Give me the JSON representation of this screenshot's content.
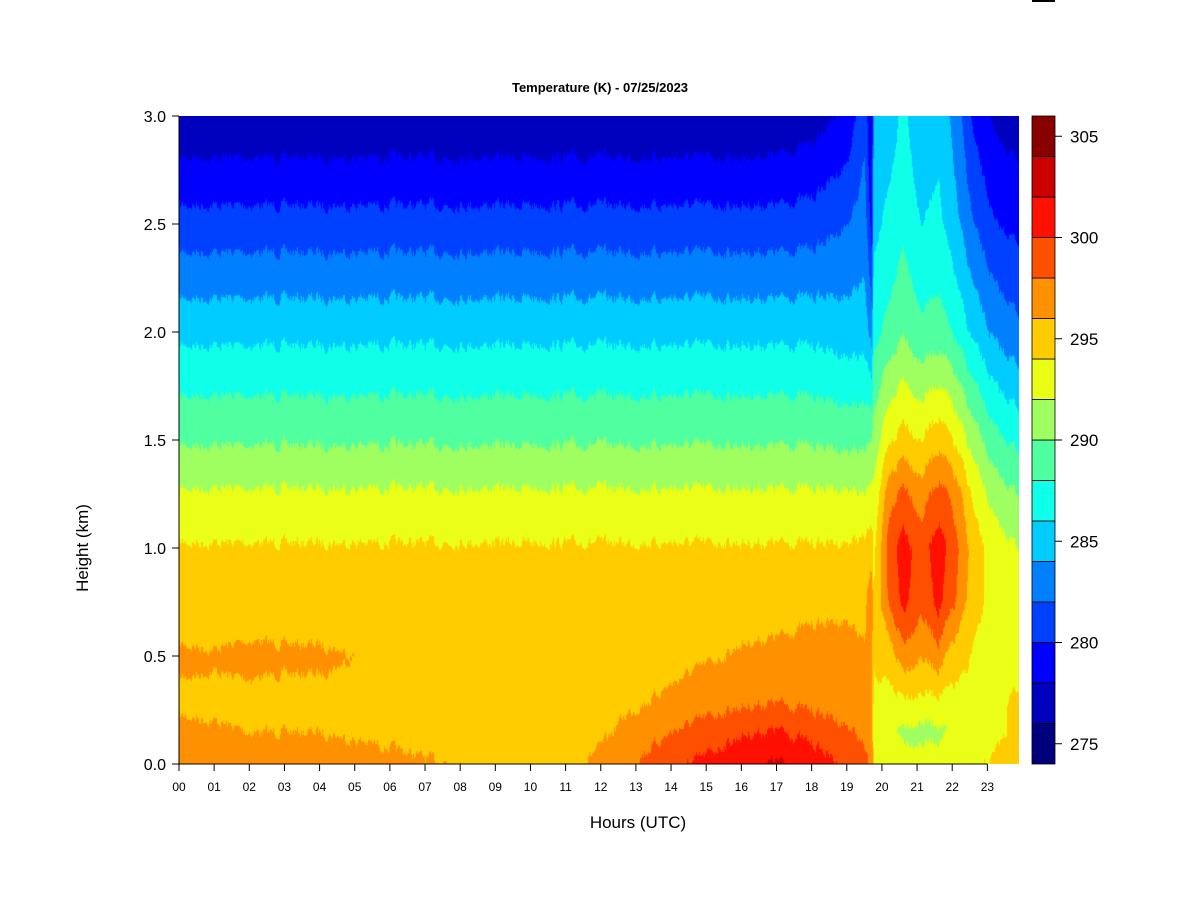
{
  "chart_data": {
    "type": "heatmap",
    "title": "Temperature (K) - 07/25/2023",
    "xlabel": "Hours (UTC)",
    "ylabel": "Height (km)",
    "xlim": [
      0,
      23.9
    ],
    "ylim": [
      0,
      3.0
    ],
    "x_tick_labels": [
      "00",
      "01",
      "02",
      "03",
      "04",
      "05",
      "06",
      "07",
      "08",
      "09",
      "10",
      "11",
      "12",
      "13",
      "14",
      "15",
      "16",
      "17",
      "18",
      "19",
      "20",
      "21",
      "22",
      "23"
    ],
    "y_tick_labels": [
      "0.0",
      "0.5",
      "1.0",
      "1.5",
      "2.0",
      "2.5",
      "3.0"
    ],
    "colorbar": {
      "levels_min": 274,
      "levels_max": 306,
      "level_step": 2,
      "tick_labels": [
        "275",
        "280",
        "285",
        "290",
        "295",
        "300",
        "305"
      ],
      "colors": [
        "#00007F",
        "#0000BF",
        "#0000FF",
        "#0040FF",
        "#0080FF",
        "#00CCFF",
        "#10FFE8",
        "#50FF9F",
        "#A0FF60",
        "#EAFF15",
        "#FFCC00",
        "#FF9000",
        "#FF5000",
        "#FF1000",
        "#CC0000",
        "#880000"
      ]
    },
    "grid_hours": [
      0,
      1,
      2,
      3,
      4,
      5,
      6,
      7,
      8,
      9,
      10,
      11,
      12,
      13,
      14,
      15,
      16,
      17,
      18,
      19,
      19.5,
      19.7,
      19.75,
      20.2,
      20.6,
      21.1,
      21.6,
      22.1,
      22.6,
      23.2,
      23.9
    ],
    "grid_heights_km": [
      0,
      0.15,
      0.3,
      0.5,
      0.75,
      1.0,
      1.25,
      1.5,
      2.0,
      2.5,
      3.0
    ],
    "temperature_K": [
      [
        297,
        297,
        297,
        296.8,
        296.8,
        296.6,
        296.3,
        296.1,
        296,
        295.5,
        295.3,
        295.5,
        296.5,
        298.2,
        299.6,
        300.5,
        301.6,
        302.3,
        301.3,
        299.5,
        298.5,
        297.5,
        294,
        293.5,
        293.5,
        293.5,
        293.5,
        293.5,
        293.8,
        294.2,
        296
      ],
      [
        296.2,
        296.1,
        296,
        296,
        296,
        295.8,
        295.7,
        295.6,
        295.5,
        295.4,
        295.3,
        295.3,
        295.6,
        296.8,
        298,
        298.8,
        299.8,
        300.2,
        299.3,
        298.3,
        297.5,
        297,
        293.5,
        292.5,
        291.5,
        291.2,
        291.5,
        292.5,
        293,
        293.5,
        294.5
      ],
      [
        295.8,
        295.8,
        295.7,
        295.7,
        295.7,
        295.6,
        295.5,
        295.5,
        295.4,
        295.4,
        295.3,
        295.3,
        295.4,
        295.7,
        296.4,
        297,
        297.5,
        297.8,
        297.3,
        296.8,
        296.5,
        296.5,
        293.8,
        293.5,
        293.6,
        293.6,
        293.5,
        293.5,
        293.6,
        293.8,
        294.2
      ],
      [
        296.2,
        296.1,
        296.3,
        296.2,
        296.2,
        296,
        295.8,
        295.5,
        295.6,
        295.8,
        295.5,
        295.3,
        295.2,
        295.2,
        295.3,
        295.8,
        296.2,
        296.4,
        296.6,
        296.4,
        296.2,
        296.8,
        294,
        295,
        297,
        296,
        297,
        294.8,
        293.8,
        293.5,
        293.5
      ],
      [
        295.3,
        295.3,
        295.3,
        295.3,
        295.3,
        295.3,
        295.3,
        295.3,
        295.3,
        295.3,
        295.3,
        295.3,
        295.3,
        295.3,
        295.3,
        295.3,
        295.3,
        295.3,
        295.6,
        295.8,
        295.5,
        297.5,
        294,
        298.5,
        300.5,
        298.5,
        300.5,
        298,
        294.5,
        293.5,
        293
      ],
      [
        294.2,
        294.2,
        294.2,
        294.2,
        294.2,
        294.2,
        294.2,
        294.2,
        294.2,
        294.2,
        294.2,
        294.2,
        294.2,
        294.2,
        294.2,
        294.2,
        294.2,
        294.2,
        294.2,
        294.2,
        294.5,
        295,
        293.5,
        299,
        301,
        299,
        301.2,
        298.5,
        295,
        293,
        292
      ],
      [
        292.3,
        292.3,
        292.3,
        292.3,
        292.3,
        292.3,
        292.3,
        292.3,
        292.3,
        292.3,
        292.3,
        292.3,
        292.3,
        292.3,
        292.3,
        292.3,
        292.3,
        292.3,
        292.3,
        292.3,
        292,
        292.5,
        292.5,
        297,
        298.8,
        297,
        299,
        297,
        293.5,
        291,
        290
      ],
      [
        289.8,
        289.8,
        289.8,
        289.8,
        289.8,
        289.8,
        289.8,
        289.8,
        289.8,
        289.8,
        289.8,
        289.8,
        289.8,
        289.8,
        289.8,
        289.8,
        289.8,
        289.8,
        289.8,
        289.5,
        289.5,
        290,
        291,
        293.5,
        295,
        294,
        295.5,
        293.5,
        291,
        288.5,
        287.5
      ],
      [
        285.5,
        285.5,
        285.5,
        285.5,
        285.5,
        285.5,
        285.5,
        285.5,
        285.5,
        285.5,
        285.5,
        285.5,
        285.5,
        285.5,
        285.5,
        285.5,
        285.5,
        285.5,
        285.5,
        285,
        285,
        283,
        287.5,
        288.5,
        290,
        288.5,
        289,
        287.5,
        285.5,
        283.5,
        282.5
      ],
      [
        280.8,
        280.8,
        280.8,
        280.8,
        280.8,
        280.8,
        280.8,
        280.8,
        280.8,
        280.8,
        280.8,
        280.8,
        280.8,
        280.8,
        280.8,
        280.8,
        280.8,
        280.8,
        281,
        282,
        283,
        279,
        285.5,
        286.5,
        287.5,
        286,
        286.5,
        284.5,
        282,
        280,
        279.5
      ],
      [
        276.3,
        276.3,
        276.3,
        276.3,
        276.3,
        276.3,
        276.3,
        276.3,
        276.3,
        276.3,
        276.3,
        276.3,
        276.3,
        276.3,
        276.3,
        276.3,
        276.3,
        276.5,
        277,
        278.5,
        281.5,
        277,
        284,
        285,
        286.5,
        284.5,
        285.5,
        283,
        279.5,
        277.5,
        277
      ]
    ]
  }
}
